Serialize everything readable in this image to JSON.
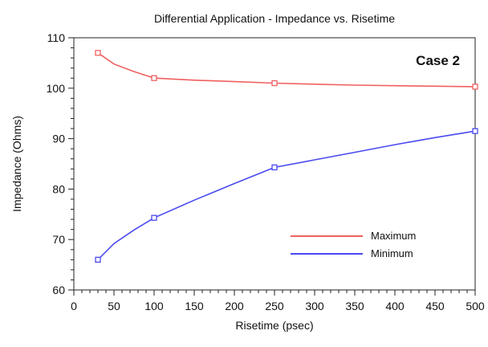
{
  "chart_data": {
    "type": "line",
    "title": "Differential Application - Impedance vs. Risetime",
    "xlabel": "Risetime (psec)",
    "ylabel": "Impedance (Ohms)",
    "annotation": "Case 2",
    "xlim": [
      0,
      500
    ],
    "ylim": [
      60,
      110
    ],
    "xticks": [
      0,
      50,
      100,
      150,
      200,
      250,
      300,
      350,
      400,
      450,
      500
    ],
    "yticks": [
      60,
      70,
      80,
      90,
      100,
      110
    ],
    "grid": false,
    "legend_position": "bottom-right",
    "series": [
      {
        "name": "Maximum",
        "color": "#f06060",
        "markers": [
          [
            30,
            107
          ],
          [
            100,
            102
          ],
          [
            250,
            101
          ],
          [
            500,
            100.3
          ]
        ],
        "curve": [
          [
            30,
            107
          ],
          [
            50,
            104.8
          ],
          [
            75,
            103.3
          ],
          [
            100,
            102
          ],
          [
            150,
            101.6
          ],
          [
            200,
            101.3
          ],
          [
            250,
            101
          ],
          [
            300,
            100.8
          ],
          [
            350,
            100.6
          ],
          [
            400,
            100.5
          ],
          [
            450,
            100.4
          ],
          [
            500,
            100.3
          ]
        ]
      },
      {
        "name": "Minimum",
        "color": "#4a4af0",
        "markers": [
          [
            30,
            66
          ],
          [
            100,
            74.3
          ],
          [
            250,
            84.3
          ],
          [
            500,
            91.5
          ]
        ],
        "curve": [
          [
            30,
            66
          ],
          [
            50,
            69.2
          ],
          [
            75,
            71.9
          ],
          [
            100,
            74.3
          ],
          [
            150,
            77.8
          ],
          [
            200,
            81.1
          ],
          [
            250,
            84.3
          ],
          [
            300,
            85.8
          ],
          [
            350,
            87.3
          ],
          [
            400,
            88.8
          ],
          [
            450,
            90.2
          ],
          [
            500,
            91.5
          ]
        ]
      }
    ]
  }
}
